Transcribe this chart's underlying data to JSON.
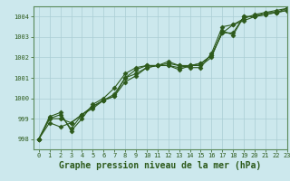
{
  "title": "Graphe pression niveau de la mer (hPa)",
  "background_color": "#cce8ed",
  "line_color": "#2d5a1b",
  "xlim": [
    -0.5,
    23
  ],
  "ylim": [
    997.5,
    1004.5
  ],
  "yticks": [
    998,
    999,
    1000,
    1001,
    1002,
    1003,
    1004
  ],
  "xticks": [
    0,
    1,
    2,
    3,
    4,
    5,
    6,
    7,
    8,
    9,
    10,
    11,
    12,
    13,
    14,
    15,
    16,
    17,
    18,
    19,
    20,
    21,
    22,
    23
  ],
  "series": [
    [
      998.0,
      999.0,
      999.2,
      998.5,
      999.2,
      999.6,
      999.9,
      1000.1,
      1000.8,
      1001.1,
      1001.5,
      1001.6,
      1001.6,
      1001.5,
      1001.6,
      1001.6,
      1002.0,
      1003.3,
      1003.1,
      1004.0,
      1004.0,
      1004.1,
      1004.2,
      1004.3
    ],
    [
      998.0,
      999.1,
      999.3,
      998.4,
      999.0,
      999.7,
      1000.0,
      1000.5,
      1001.2,
      1001.5,
      1001.6,
      1001.6,
      1001.7,
      1001.6,
      1001.5,
      1001.5,
      1002.2,
      1003.5,
      1003.6,
      1003.9,
      1004.1,
      1004.2,
      1004.2,
      1004.4
    ],
    [
      998.0,
      998.8,
      998.6,
      998.8,
      999.2,
      999.5,
      999.9,
      1000.2,
      1001.0,
      1001.2,
      1001.5,
      1001.6,
      1001.6,
      1001.4,
      1001.6,
      1001.7,
      1002.1,
      1003.2,
      1003.6,
      1003.8,
      1004.0,
      1004.2,
      1004.3,
      1004.4
    ],
    [
      998.0,
      999.0,
      999.0,
      998.8,
      999.2,
      999.6,
      999.9,
      1000.1,
      1001.0,
      1001.4,
      1001.6,
      1001.6,
      1001.8,
      1001.6,
      1001.6,
      1001.7,
      1002.1,
      1003.2,
      1003.2,
      1004.0,
      1004.0,
      1004.1,
      1004.2,
      1004.3
    ]
  ],
  "marker": "D",
  "markersize": 2.5,
  "linewidth": 0.8,
  "title_fontsize": 7,
  "tick_fontsize": 5,
  "grid_color": "#aacdd4",
  "grid_linewidth": 0.5,
  "spine_color": "#5a8a5a"
}
